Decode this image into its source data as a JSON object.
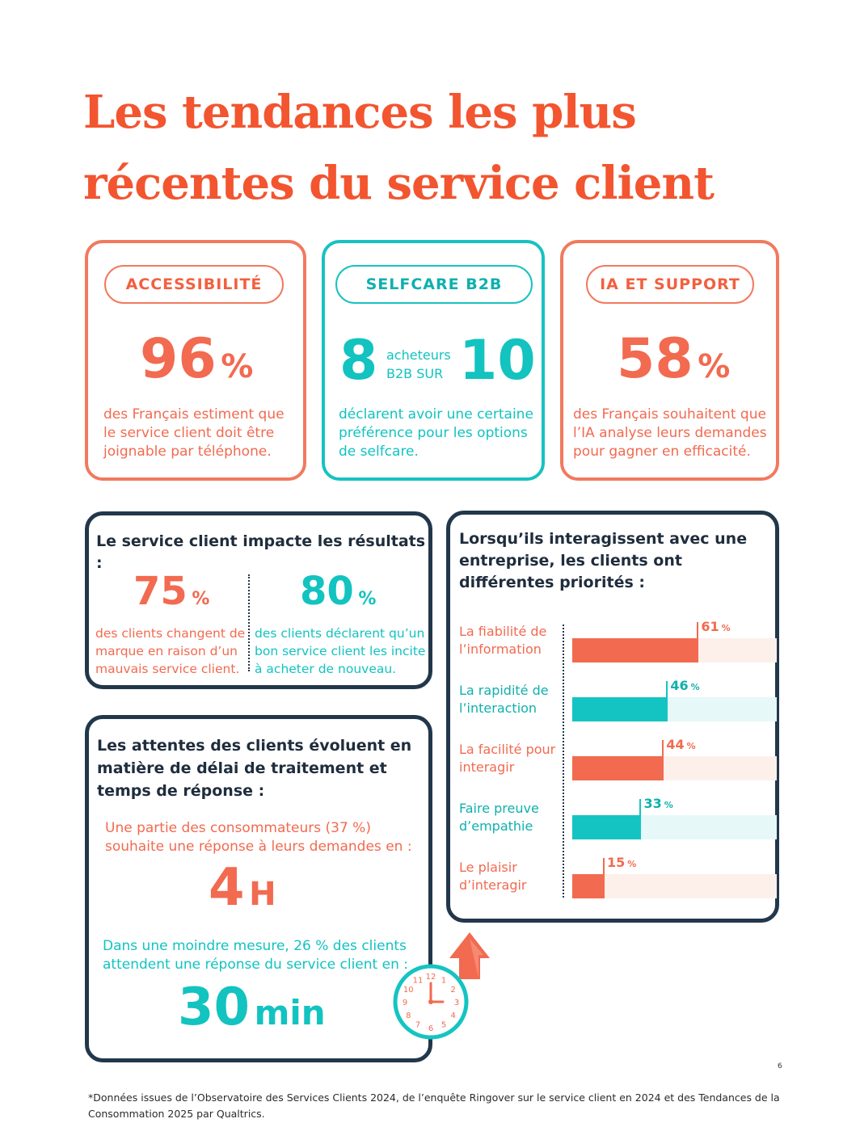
{
  "title": "Les tendances les plus récentes du service client",
  "cards": {
    "accessibility": {
      "tag": "ACCESSIBILITÉ",
      "number": "96",
      "unit": "%",
      "text": "des Français estiment que le service client doit être joignable par téléphone."
    },
    "selfcare": {
      "tag": "SELFCARE B2B",
      "number_left": "8",
      "mid_top": "acheteurs",
      "mid_bottom": "B2B SUR",
      "number_right": "10",
      "text": "déclarent avoir une certaine préférence pour les options de selfcare."
    },
    "ia": {
      "tag": "IA ET SUPPORT",
      "number": "58",
      "unit": "%",
      "text": "des Français souhaitent que l’IA analyse leurs demandes pour gagner en efficacité."
    }
  },
  "impact": {
    "heading": "Le service client impacte les résultats :",
    "left": {
      "number": "75",
      "unit": "%",
      "text": "des clients changent de marque en raison d’un mauvais service client."
    },
    "right": {
      "number": "80",
      "unit": "%",
      "text": "des clients déclarent qu’un bon service client les incite à acheter de nouveau."
    }
  },
  "delays": {
    "heading": "Les attentes des clients évoluent en matière de délai de traitement et temps de réponse :",
    "first_text": "Une partie des consommateurs (37 %) souhaite une réponse à leurs demandes en :",
    "first_value": "4",
    "first_unit": "H",
    "second_text": "Dans une moindre mesure, 26 % des clients attendent une réponse du service client en :",
    "second_value": "30",
    "second_unit": "min"
  },
  "clock": {
    "numbers": [
      "12",
      "1",
      "2",
      "3",
      "4",
      "5",
      "6",
      "7",
      "8",
      "9",
      "10",
      "11"
    ]
  },
  "priorities": {
    "heading": "Lorsqu’ils interagissent avec une entreprise, les clients ont différentes priorités :"
  },
  "chart_data": {
    "type": "bar",
    "categories": [
      "La fiabilité de l’information",
      "La rapidité de l’interaction",
      "La facilité pour interagir",
      "Faire preuve d’empathie",
      "Le plaisir d’interagir"
    ],
    "values": [
      61,
      46,
      44,
      33,
      15
    ],
    "unit": "%",
    "colors": [
      "#f26a50",
      "#14c4c2",
      "#f26a50",
      "#14c4c2",
      "#f26a50"
    ],
    "track_colors": [
      "#fdf0eb",
      "#e6f8f8",
      "#fdf0eb",
      "#e6f8f8",
      "#fdf0eb"
    ],
    "xlim": [
      0,
      100
    ]
  },
  "page_number": "6",
  "footnote": "*Données issues de l’Observatoire des Services Clients 2024, de l’enquête Ringover sur le service client en 2024 et des Tendances de la Consommation 2025 par Qualtrics."
}
